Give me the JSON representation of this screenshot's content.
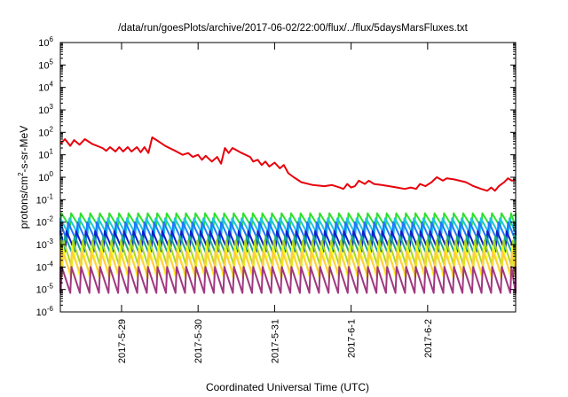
{
  "chart_data": {
    "type": "line",
    "title": "/data/run/goesPlots/archive/2017-06-02/22:00/flux/../flux/5daysMarsFluxes.txt",
    "xlabel": "Coordinated Universal Time (UTC)",
    "ylabel": "protons/cm2-s-sr-MeV",
    "ylabel_parts": {
      "pre": "protons/cm",
      "sup": "2",
      "post": "-s-sr-MeV"
    },
    "y_scale": "log",
    "ylim": [
      1e-06,
      1000000
    ],
    "y_ticks": [
      {
        "base": "10",
        "exp": "-6",
        "value": 1e-06
      },
      {
        "base": "10",
        "exp": "-5",
        "value": 1e-05
      },
      {
        "base": "10",
        "exp": "-4",
        "value": 0.0001
      },
      {
        "base": "10",
        "exp": "-3",
        "value": 0.001
      },
      {
        "base": "10",
        "exp": "-2",
        "value": 0.01
      },
      {
        "base": "10",
        "exp": "-1",
        "value": 0.1
      },
      {
        "base": "10",
        "exp": "0",
        "value": 1
      },
      {
        "base": "10",
        "exp": "1",
        "value": 10
      },
      {
        "base": "10",
        "exp": "2",
        "value": 100
      },
      {
        "base": "10",
        "exp": "3",
        "value": 1000
      },
      {
        "base": "10",
        "exp": "4",
        "value": 10000
      },
      {
        "base": "10",
        "exp": "5",
        "value": 100000
      },
      {
        "base": "10",
        "exp": "6",
        "value": 1000000
      }
    ],
    "x_unit": "days since 2017-05-28 00:00 UTC",
    "xlim": [
      0.2,
      6.15
    ],
    "x_ticks": [
      {
        "label": "2017-5-29",
        "value": 1
      },
      {
        "label": "2017-5-30",
        "value": 2
      },
      {
        "label": "2017-5-31",
        "value": 3
      },
      {
        "label": "2017-6-1",
        "value": 4
      },
      {
        "label": "2017-6-2",
        "value": 5
      }
    ],
    "grid": false,
    "legend": "none",
    "series": [
      {
        "color": "#e8000b",
        "points": [
          [
            0.2,
            30
          ],
          [
            0.26,
            50
          ],
          [
            0.33,
            25
          ],
          [
            0.38,
            45
          ],
          [
            0.45,
            28
          ],
          [
            0.52,
            50
          ],
          [
            0.62,
            30
          ],
          [
            0.75,
            20
          ],
          [
            0.8,
            15
          ],
          [
            0.85,
            22
          ],
          [
            0.92,
            14
          ],
          [
            0.97,
            22
          ],
          [
            1.02,
            14
          ],
          [
            1.08,
            22
          ],
          [
            1.13,
            14
          ],
          [
            1.2,
            22
          ],
          [
            1.25,
            13
          ],
          [
            1.3,
            22
          ],
          [
            1.35,
            12
          ],
          [
            1.4,
            60
          ],
          [
            1.48,
            40
          ],
          [
            1.57,
            25
          ],
          [
            1.7,
            15
          ],
          [
            1.8,
            10
          ],
          [
            1.87,
            12
          ],
          [
            1.93,
            8
          ],
          [
            2.0,
            10
          ],
          [
            2.05,
            6
          ],
          [
            2.1,
            9
          ],
          [
            2.18,
            5
          ],
          [
            2.25,
            8
          ],
          [
            2.3,
            4
          ],
          [
            2.35,
            20
          ],
          [
            2.4,
            12
          ],
          [
            2.45,
            20
          ],
          [
            2.55,
            13
          ],
          [
            2.68,
            8
          ],
          [
            2.72,
            5
          ],
          [
            2.78,
            6
          ],
          [
            2.83,
            3.5
          ],
          [
            2.88,
            5
          ],
          [
            2.93,
            3
          ],
          [
            3.0,
            4.5
          ],
          [
            3.07,
            2.5
          ],
          [
            3.12,
            3.5
          ],
          [
            3.18,
            1.5
          ],
          [
            3.25,
            1
          ],
          [
            3.35,
            0.6
          ],
          [
            3.5,
            0.45
          ],
          [
            3.65,
            0.4
          ],
          [
            3.75,
            0.45
          ],
          [
            3.85,
            0.35
          ],
          [
            3.9,
            0.3
          ],
          [
            3.95,
            0.5
          ],
          [
            4.0,
            0.35
          ],
          [
            4.05,
            0.4
          ],
          [
            4.1,
            0.7
          ],
          [
            4.18,
            0.5
          ],
          [
            4.23,
            0.7
          ],
          [
            4.3,
            0.5
          ],
          [
            4.4,
            0.45
          ],
          [
            4.5,
            0.4
          ],
          [
            4.6,
            0.35
          ],
          [
            4.7,
            0.3
          ],
          [
            4.78,
            0.35
          ],
          [
            4.85,
            0.3
          ],
          [
            4.9,
            0.5
          ],
          [
            4.97,
            0.4
          ],
          [
            5.05,
            0.6
          ],
          [
            5.12,
            1
          ],
          [
            5.2,
            0.7
          ],
          [
            5.25,
            0.9
          ],
          [
            5.35,
            0.8
          ],
          [
            5.5,
            0.6
          ],
          [
            5.6,
            0.4
          ],
          [
            5.7,
            0.3
          ],
          [
            5.78,
            0.25
          ],
          [
            5.83,
            0.35
          ],
          [
            5.88,
            0.25
          ],
          [
            5.93,
            0.4
          ],
          [
            6.0,
            0.6
          ],
          [
            6.05,
            0.9
          ],
          [
            6.1,
            0.7
          ],
          [
            6.15,
            0.75
          ]
        ]
      },
      {
        "color": "#2ee02e",
        "waveform": "sawtooth",
        "high": 0.025,
        "low": 0.006,
        "period_days": 0.125,
        "phase": 0.0
      },
      {
        "color": "#1ec6e0",
        "waveform": "sawtooth",
        "high": 0.015,
        "low": 0.003,
        "period_days": 0.125,
        "phase": 0.02
      },
      {
        "color": "#1e78ff",
        "waveform": "sawtooth",
        "high": 0.01,
        "low": 0.0015,
        "period_days": 0.125,
        "phase": 0.04
      },
      {
        "color": "#1420c8",
        "waveform": "sawtooth",
        "high": 0.004,
        "low": 0.0005,
        "period_days": 0.125,
        "phase": 0.06
      },
      {
        "color": "#18a890",
        "waveform": "sawtooth",
        "high": 0.0025,
        "low": 0.0003,
        "period_days": 0.125,
        "phase": 0.08
      },
      {
        "color": "#a8d820",
        "waveform": "sawtooth",
        "high": 0.0015,
        "low": 0.0001,
        "period_days": 0.125,
        "phase": 0.1
      },
      {
        "color": "#ffff00",
        "waveform": "sawtooth",
        "high": 0.0008,
        "low": 3e-05,
        "period_days": 0.125,
        "phase": 0.11
      },
      {
        "color": "#ffcc44",
        "waveform": "sawtooth",
        "high": 0.0005,
        "low": 5e-05,
        "period_days": 0.125,
        "phase": 0.115
      },
      {
        "color": "#a03880",
        "waveform": "sawtooth",
        "high": 0.0001,
        "low": 7e-06,
        "period_days": 0.125,
        "phase": 0.12
      }
    ]
  }
}
